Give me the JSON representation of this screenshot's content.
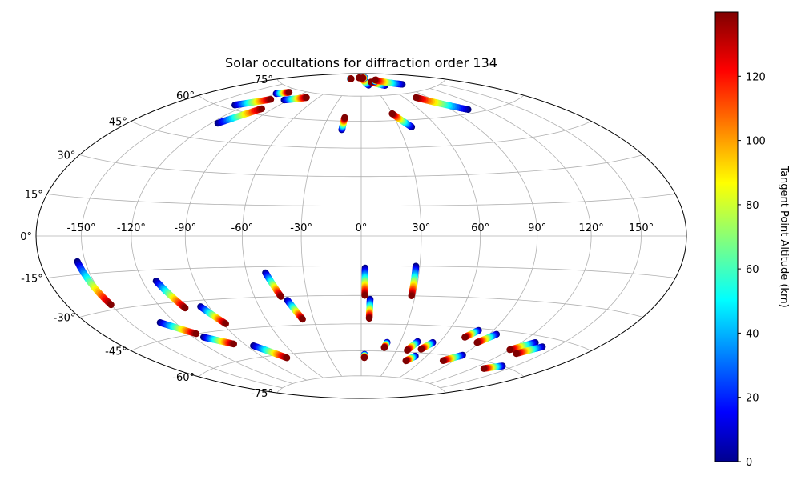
{
  "chart_data": {
    "type": "scatter",
    "projection": "hammer",
    "title": "Solar occultations for diffraction order 134",
    "grid": true,
    "x_ticks": [
      "-150°",
      "-120°",
      "-90°",
      "-60°",
      "-30°",
      "0°",
      "30°",
      "60°",
      "90°",
      "120°",
      "150°"
    ],
    "y_ticks": [
      "-75°",
      "-60°",
      "-45°",
      "-30°",
      "-15°",
      "0°",
      "15°",
      "30°",
      "45°",
      "60°",
      "75°"
    ],
    "colorbar": {
      "label": "Tangent Point Altitude (km)",
      "range": [
        0,
        140
      ],
      "ticks": [
        "0",
        "20",
        "40",
        "60",
        "80",
        "100",
        "120"
      ],
      "colormap": "jet"
    },
    "series": [
      {
        "points": [
          [
            -155,
            -10,
            0
          ],
          [
            -150,
            -28,
            140
          ]
        ]
      },
      {
        "points": [
          [
            -112,
            -20,
            0
          ],
          [
            -105,
            -33,
            140
          ]
        ]
      },
      {
        "points": [
          [
            -95,
            -33,
            0
          ],
          [
            -88,
            -42,
            140
          ]
        ]
      },
      {
        "points": [
          [
            -130,
            -38,
            0
          ],
          [
            -115,
            -45,
            140
          ]
        ]
      },
      {
        "points": [
          [
            -113,
            -47,
            0
          ],
          [
            -98,
            -52,
            140
          ]
        ]
      },
      {
        "points": [
          [
            -85,
            -54,
            0
          ],
          [
            -70,
            -62,
            140
          ]
        ]
      },
      {
        "points": [
          [
            -50,
            -18,
            0
          ],
          [
            -45,
            -30,
            140
          ]
        ]
      },
      {
        "points": [
          [
            -42,
            -32,
            0
          ],
          [
            -37,
            -42,
            140
          ]
        ]
      },
      {
        "points": [
          [
            2,
            -16,
            0
          ],
          [
            2,
            -30,
            140
          ]
        ]
      },
      {
        "points": [
          [
            5,
            -32,
            0
          ],
          [
            5,
            -42,
            140
          ]
        ]
      },
      {
        "points": [
          [
            3,
            -62,
            0
          ],
          [
            3,
            -64,
            140
          ]
        ]
      },
      {
        "points": [
          [
            28,
            -15,
            0
          ],
          [
            28,
            -30,
            140
          ]
        ]
      },
      {
        "points": [
          [
            20,
            -55,
            0
          ],
          [
            19,
            -58,
            140
          ]
        ]
      },
      {
        "points": [
          [
            43,
            -54,
            0
          ],
          [
            39,
            -59,
            140
          ]
        ]
      },
      {
        "points": [
          [
            55,
            -54,
            0
          ],
          [
            50,
            -58,
            140
          ]
        ]
      },
      {
        "points": [
          [
            50,
            -62,
            0
          ],
          [
            45,
            -65,
            140
          ]
        ]
      },
      {
        "points": [
          [
            80,
            -46,
            0
          ],
          [
            75,
            -50,
            140
          ]
        ]
      },
      {
        "points": [
          [
            95,
            -47,
            0
          ],
          [
            88,
            -52,
            140
          ]
        ]
      },
      {
        "points": [
          [
            90,
            -59,
            0
          ],
          [
            80,
            -63,
            140
          ]
        ]
      },
      {
        "points": [
          [
            130,
            -48,
            0
          ],
          [
            120,
            -53,
            140
          ]
        ]
      },
      {
        "points": [
          [
            140,
            -49,
            0
          ],
          [
            130,
            -54,
            140
          ]
        ]
      },
      {
        "points": [
          [
            140,
            -60,
            0
          ],
          [
            130,
            -63,
            140
          ]
        ]
      },
      {
        "points": [
          [
            -120,
            71,
            0
          ],
          [
            -110,
            73,
            140
          ]
        ]
      },
      {
        "points": [
          [
            -130,
            62,
            0
          ],
          [
            -110,
            68,
            140
          ]
        ]
      },
      {
        "points": [
          [
            -115,
            53,
            0
          ],
          [
            -100,
            63,
            140
          ]
        ]
      },
      {
        "points": [
          [
            -95,
            69,
            0
          ],
          [
            -75,
            72,
            140
          ]
        ]
      },
      {
        "points": [
          [
            -60,
            86,
            0
          ],
          [
            -55,
            86,
            140
          ]
        ]
      },
      {
        "points": [
          [
            -15,
            55,
            0
          ],
          [
            -15,
            62,
            140
          ]
        ]
      },
      {
        "points": [
          [
            -5,
            87,
            0
          ],
          [
            -15,
            87,
            140
          ]
        ]
      },
      {
        "points": [
          [
            20,
            82,
            0
          ],
          [
            5,
            87,
            140
          ]
        ]
      },
      {
        "points": [
          [
            25,
            87,
            0
          ],
          [
            10,
            87,
            140
          ]
        ]
      },
      {
        "points": [
          [
            60,
            81,
            0
          ],
          [
            35,
            84,
            140
          ]
        ]
      },
      {
        "points": [
          [
            50,
            84,
            0
          ],
          [
            65,
            85,
            140
          ]
        ]
      },
      {
        "points": [
          [
            100,
            80,
            0
          ],
          [
            60,
            85,
            140
          ]
        ]
      },
      {
        "points": [
          [
            40,
            56,
            0
          ],
          [
            30,
            64,
            140
          ]
        ]
      },
      {
        "points": [
          [
            105,
            62,
            0
          ],
          [
            75,
            72,
            140
          ]
        ]
      }
    ]
  }
}
